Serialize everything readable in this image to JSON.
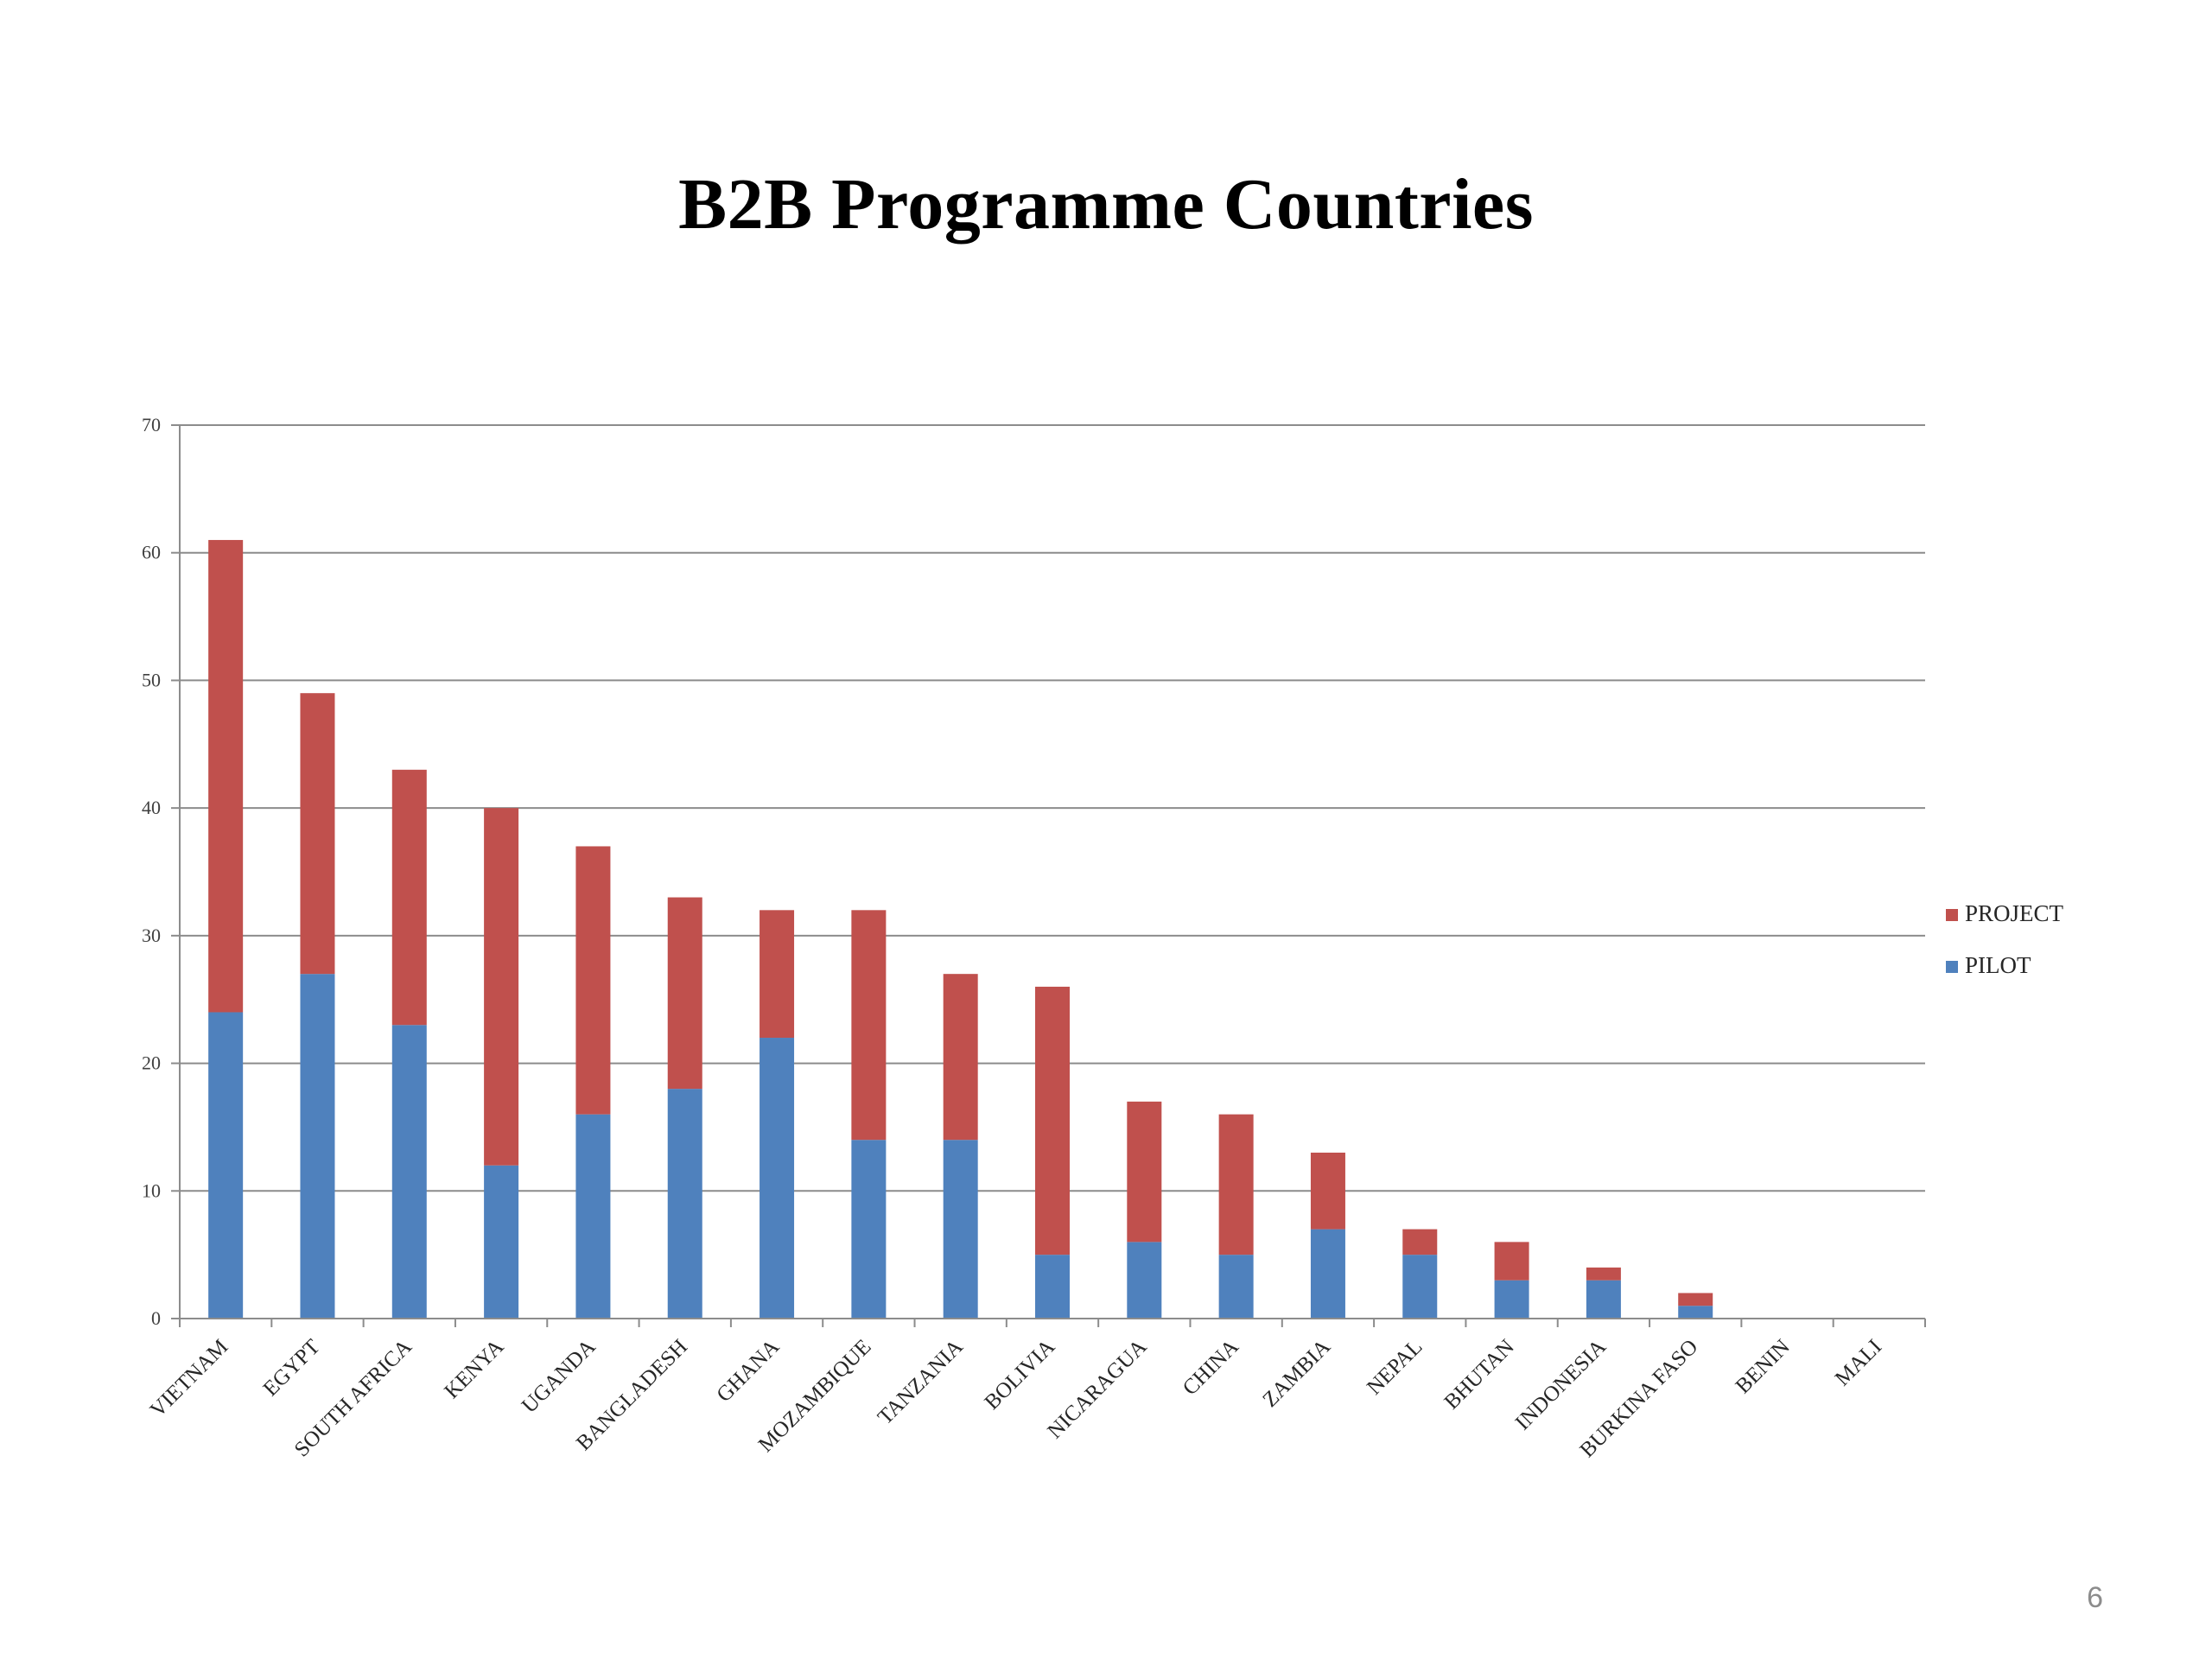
{
  "slide": {
    "title": "B2B Programme Countries",
    "number": "6"
  },
  "colors": {
    "project": "#C0504D",
    "pilot": "#4F81BD",
    "grid": "#8C8C8C"
  },
  "chart_data": {
    "type": "bar",
    "stacked": true,
    "title": "B2B Programme Countries",
    "categories": [
      "VIETNAM",
      "EGYPT",
      "SOUTH AFRICA",
      "KENYA",
      "UGANDA",
      "BANGLADESH",
      "GHANA",
      "MOZAMBIQUE",
      "TANZANIA",
      "BOLIVIA",
      "NICARAGUA",
      "CHINA",
      "ZAMBIA",
      "NEPAL",
      "BHUTAN",
      "INDONESIA",
      "BURKINA FASO",
      "BENIN",
      "MALI"
    ],
    "series": [
      {
        "name": "PILOT",
        "values": [
          24,
          27,
          23,
          12,
          16,
          18,
          22,
          14,
          14,
          5,
          6,
          5,
          7,
          5,
          3,
          3,
          1,
          0,
          0
        ]
      },
      {
        "name": "PROJECT",
        "values": [
          37,
          22,
          20,
          28,
          21,
          15,
          10,
          18,
          13,
          21,
          11,
          11,
          6,
          2,
          3,
          1,
          1,
          0,
          0
        ]
      }
    ],
    "ylim": [
      0,
      70
    ],
    "yticks": [
      0,
      10,
      20,
      30,
      40,
      50,
      60,
      70
    ],
    "grid": true,
    "legend": {
      "position": "right",
      "entries": [
        "PROJECT",
        "PILOT"
      ]
    }
  }
}
